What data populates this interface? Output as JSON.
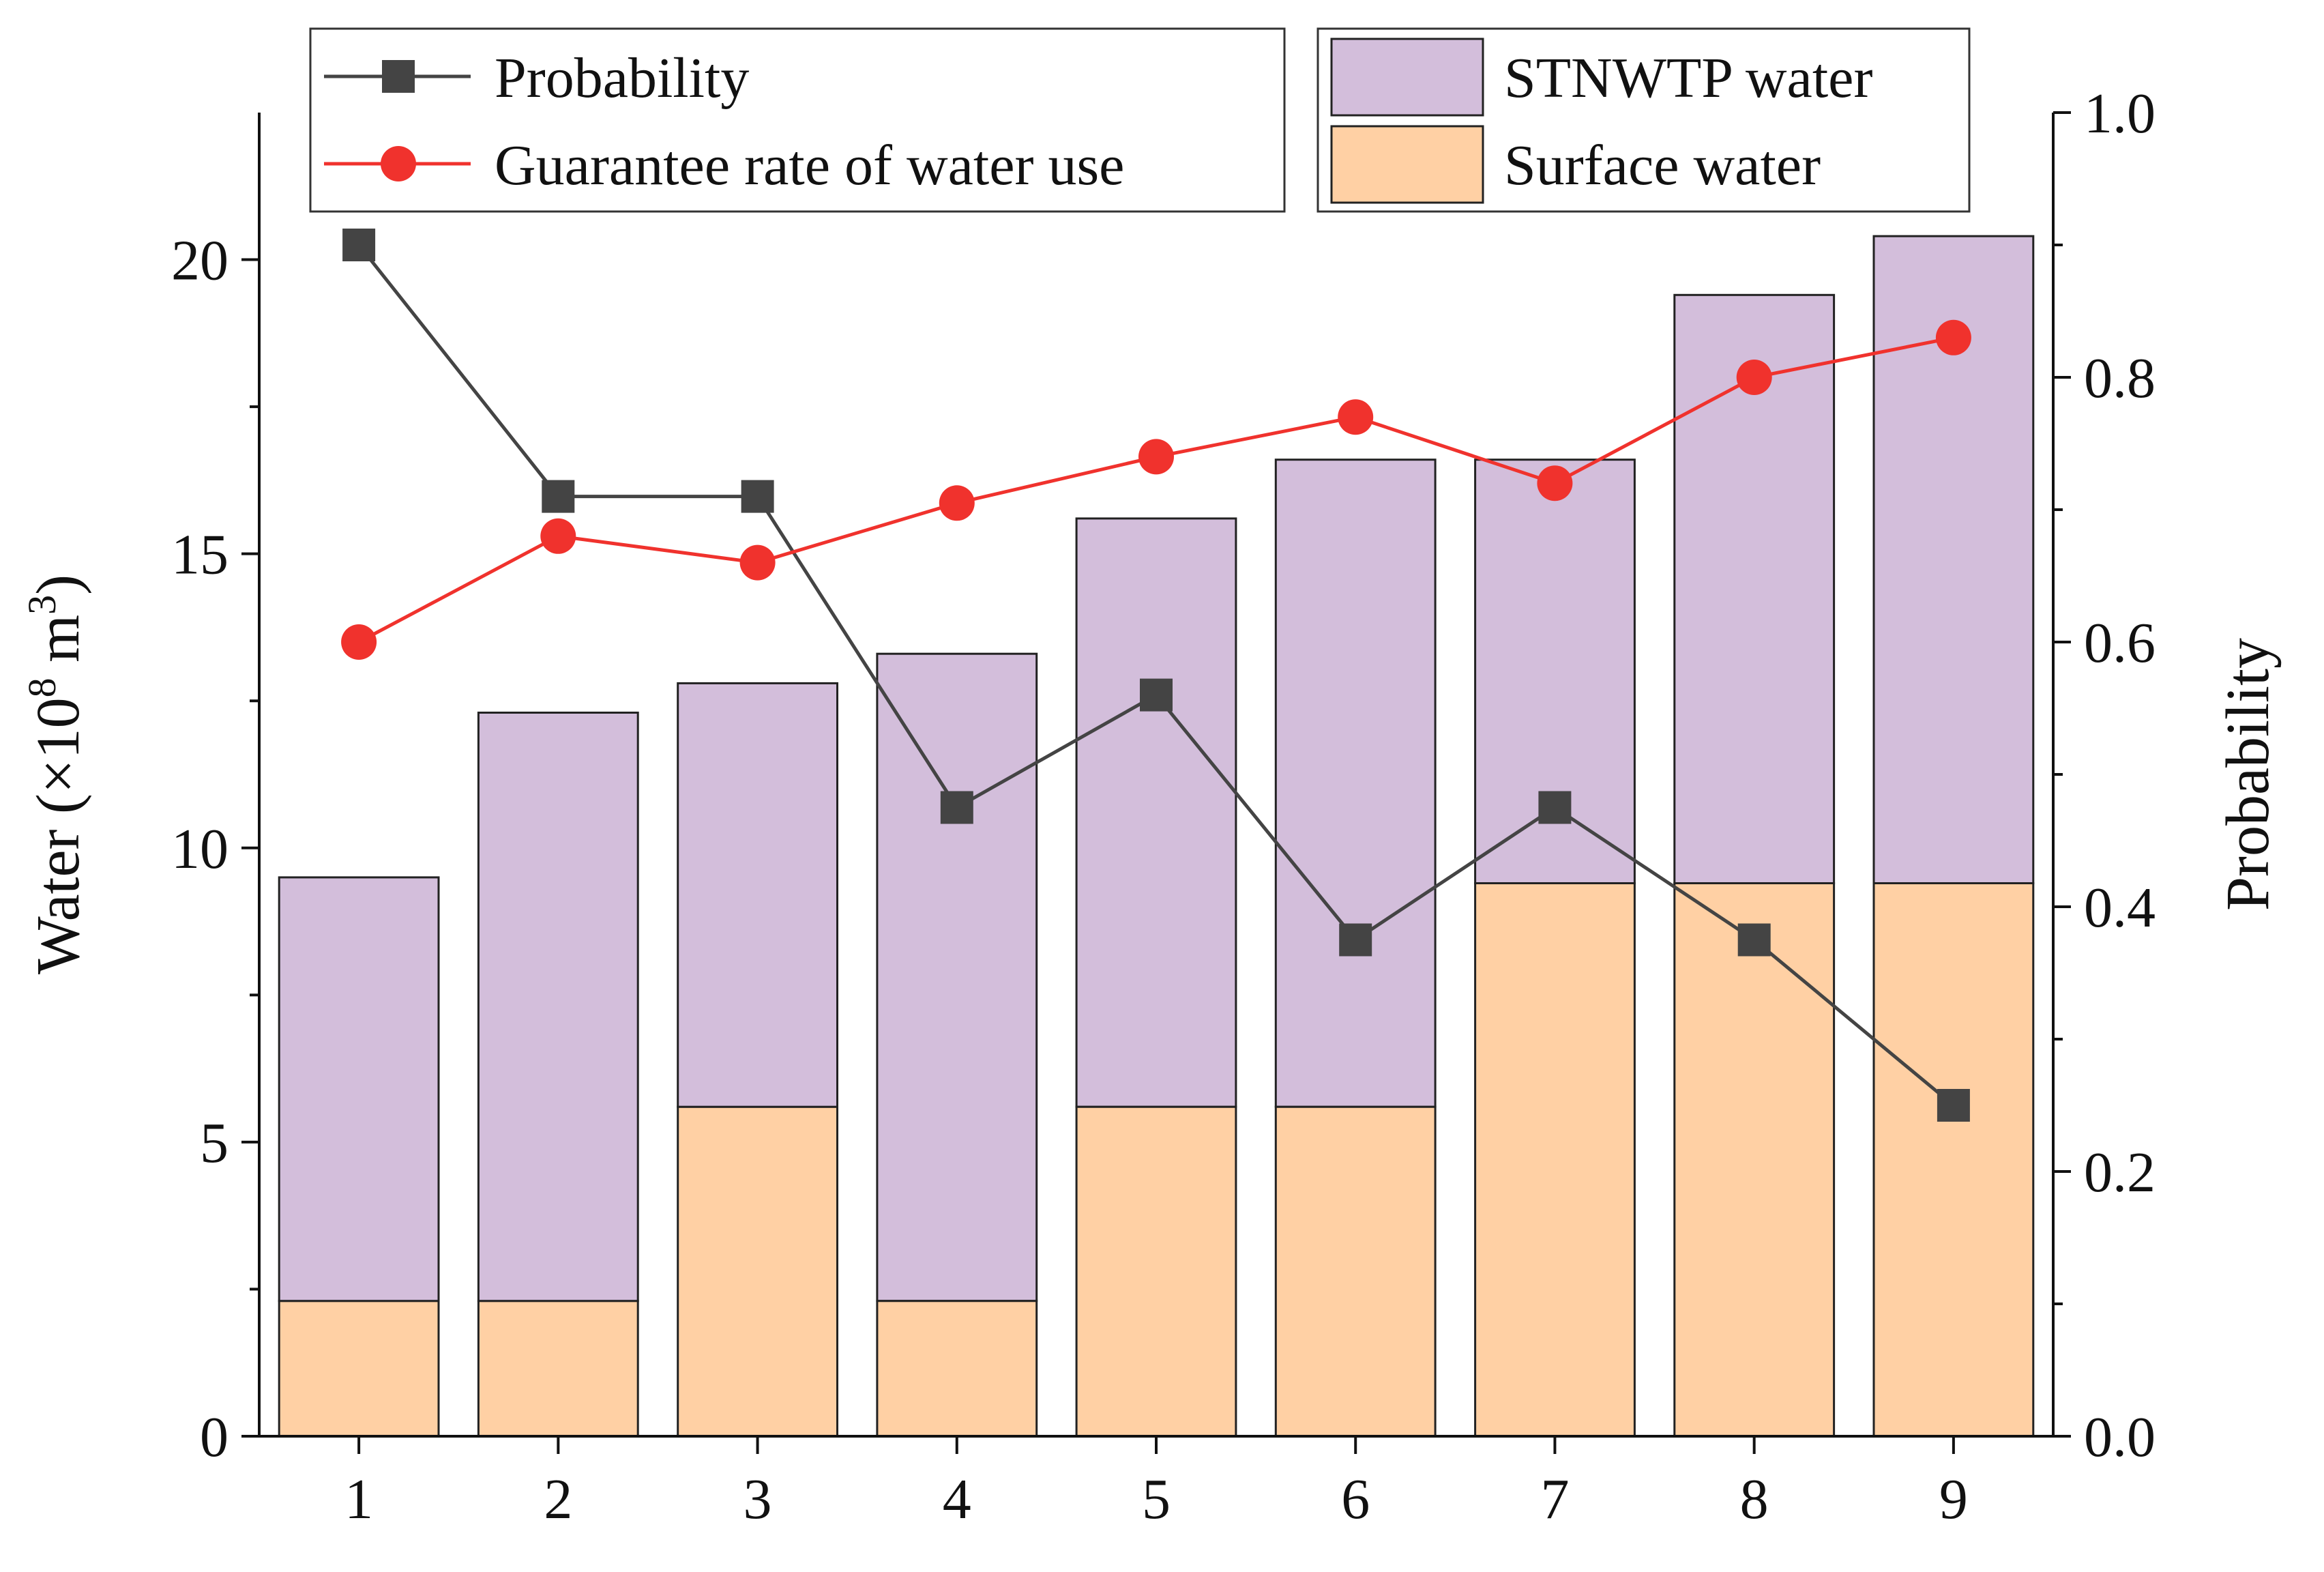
{
  "chart_data": {
    "type": "bar",
    "stacked": true,
    "title": "",
    "categories": [
      "1",
      "2",
      "3",
      "4",
      "5",
      "6",
      "7",
      "8",
      "9"
    ],
    "series": [
      {
        "name": "Surface water",
        "kind": "bar",
        "axis": "left",
        "color": "#FFD0A4",
        "values": [
          2.3,
          2.3,
          5.6,
          2.3,
          5.6,
          5.6,
          9.4,
          9.4,
          9.4
        ]
      },
      {
        "name": "STNWTP water",
        "kind": "bar",
        "axis": "left",
        "color": "#D3BEDB",
        "values": [
          7.2,
          10.0,
          7.2,
          11.0,
          10.0,
          11.0,
          7.2,
          10.0,
          11.0
        ]
      },
      {
        "name": "Probability",
        "kind": "line",
        "axis": "right",
        "color": "#444444",
        "marker": "square",
        "values": [
          0.9,
          0.71,
          0.71,
          0.475,
          0.56,
          0.375,
          0.475,
          0.375,
          0.25
        ]
      },
      {
        "name": "Guarantee rate of water use",
        "kind": "line",
        "axis": "right",
        "color": "#F0322D",
        "marker": "circle",
        "values": [
          0.6,
          0.68,
          0.66,
          0.705,
          0.74,
          0.77,
          0.72,
          0.8,
          0.83
        ]
      }
    ],
    "left_axis": {
      "label_main": "Water (×10",
      "label_sup1": "8",
      "label_mid": " m",
      "label_sup2": "3",
      "label_end": ")",
      "ylim": [
        0,
        22.5
      ],
      "ticks": [
        "0",
        "5",
        "10",
        "15",
        "20"
      ]
    },
    "right_axis": {
      "label": "Probability",
      "ylim": [
        0,
        1.0
      ],
      "ticks": [
        "0.0",
        "0.2",
        "0.4",
        "0.6",
        "0.8",
        "1.0"
      ]
    },
    "x_ticks": [
      "1",
      "2",
      "3",
      "4",
      "5",
      "6",
      "7",
      "8",
      "9"
    ],
    "legends": [
      {
        "position": "top-left",
        "items": [
          "Probability",
          "Guarantee rate of water use"
        ]
      },
      {
        "position": "top-right",
        "items": [
          "STNWTP water",
          "Surface water"
        ]
      }
    ]
  }
}
